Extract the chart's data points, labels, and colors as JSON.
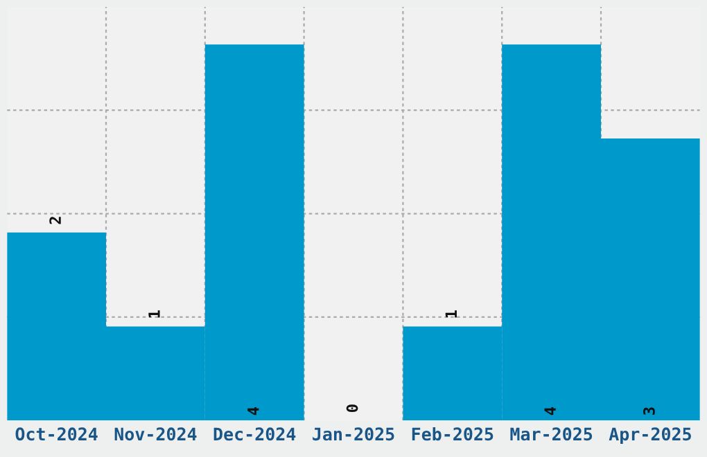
{
  "chart_data": {
    "type": "bar",
    "categories": [
      "Oct-2024",
      "Nov-2024",
      "Dec-2024",
      "Jan-2025",
      "Feb-2025",
      "Mar-2025",
      "Apr-2025"
    ],
    "values": [
      2,
      1,
      4,
      0,
      1,
      4,
      3
    ],
    "color": "#0099cc",
    "data_labels": true,
    "ylim": [
      0,
      4.4
    ],
    "yticks": [
      {
        "value": 1.1,
        "label": null
      },
      {
        "value": 2.2,
        "label": null
      },
      {
        "value": 3.3,
        "label": null
      }
    ],
    "tick_labels": "x",
    "grid": true,
    "legend": false
  }
}
